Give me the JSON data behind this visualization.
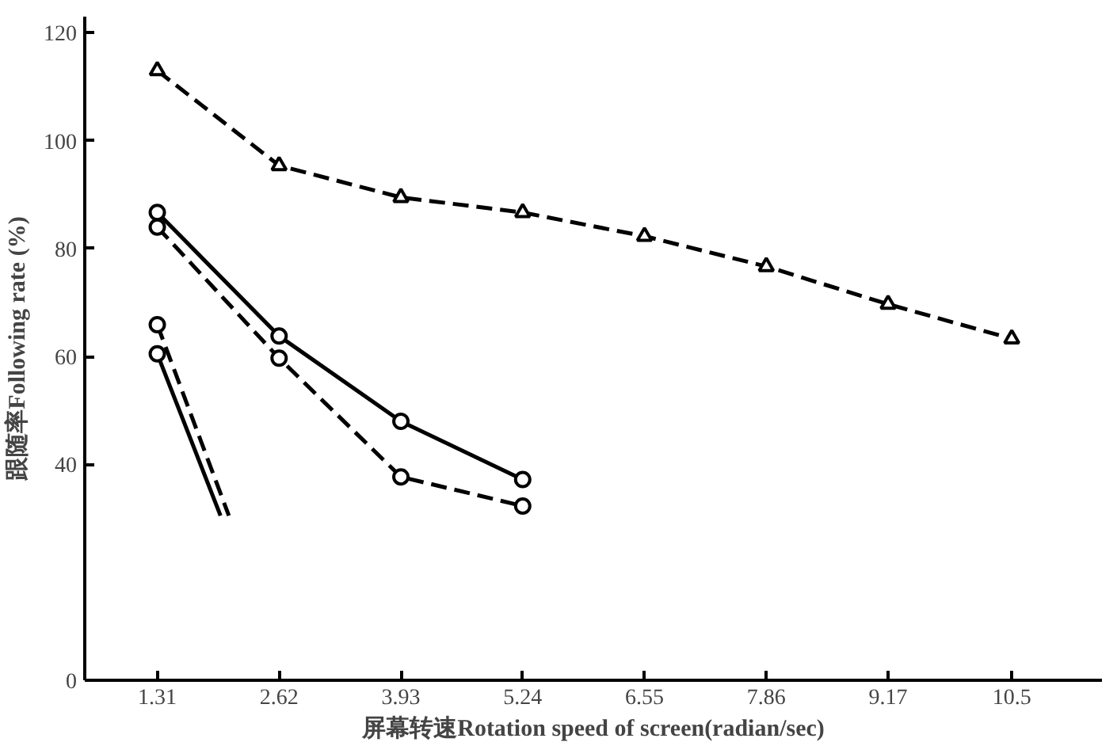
{
  "chart_data": {
    "type": "line",
    "xlabel": "屏幕转速Rotation speed of screen(radian/sec)",
    "ylabel": "跟随率Following rate (%)",
    "xlim": [
      0.53,
      11.47
    ],
    "xticks": [
      1.31,
      2.62,
      3.93,
      5.24,
      6.55,
      7.86,
      9.17,
      10.5
    ],
    "ylim": [
      0,
      123
    ],
    "yticks": [
      0,
      40,
      60,
      80,
      100,
      120
    ],
    "series": [
      {
        "x": [
          1.31,
          2.62,
          3.93,
          5.24,
          6.55,
          7.86,
          9.17,
          10.5
        ],
        "values": [
          113,
          95.4,
          89.5,
          86.7,
          82.3,
          76.7,
          69.7,
          63.3
        ],
        "color": "#000000",
        "line_style": "dashed",
        "marker": "triangle"
      },
      {
        "x": [
          1.31,
          2.62,
          3.93,
          5.24
        ],
        "values": [
          86.7,
          63.8,
          48,
          37.2
        ],
        "color": "#000000",
        "line_style": "solid",
        "marker": "circle"
      },
      {
        "x": [
          1.31,
          2.62,
          3.93,
          5.24
        ],
        "values": [
          84,
          59.7,
          37.7,
          32.3
        ],
        "color": "#000000",
        "line_style": "dashed",
        "marker": "circle"
      },
      {
        "x": [
          1.31,
          1.99
        ],
        "values": [
          60.5,
          30.5
        ],
        "color": "#000000",
        "line_style": "solid",
        "marker": "none"
      },
      {
        "x": [
          1.31,
          2.08
        ],
        "values": [
          65.9,
          30.5
        ],
        "color": "#000000",
        "line_style": "dashed",
        "marker": "none"
      },
      {
        "type": "scatter",
        "x": [
          1.31
        ],
        "values": [
          65.9
        ],
        "color": "#000000",
        "marker": "circle"
      },
      {
        "type": "scatter",
        "x": [
          1.31
        ],
        "values": [
          60.5
        ],
        "color": "#000000",
        "marker": "circle"
      }
    ]
  }
}
